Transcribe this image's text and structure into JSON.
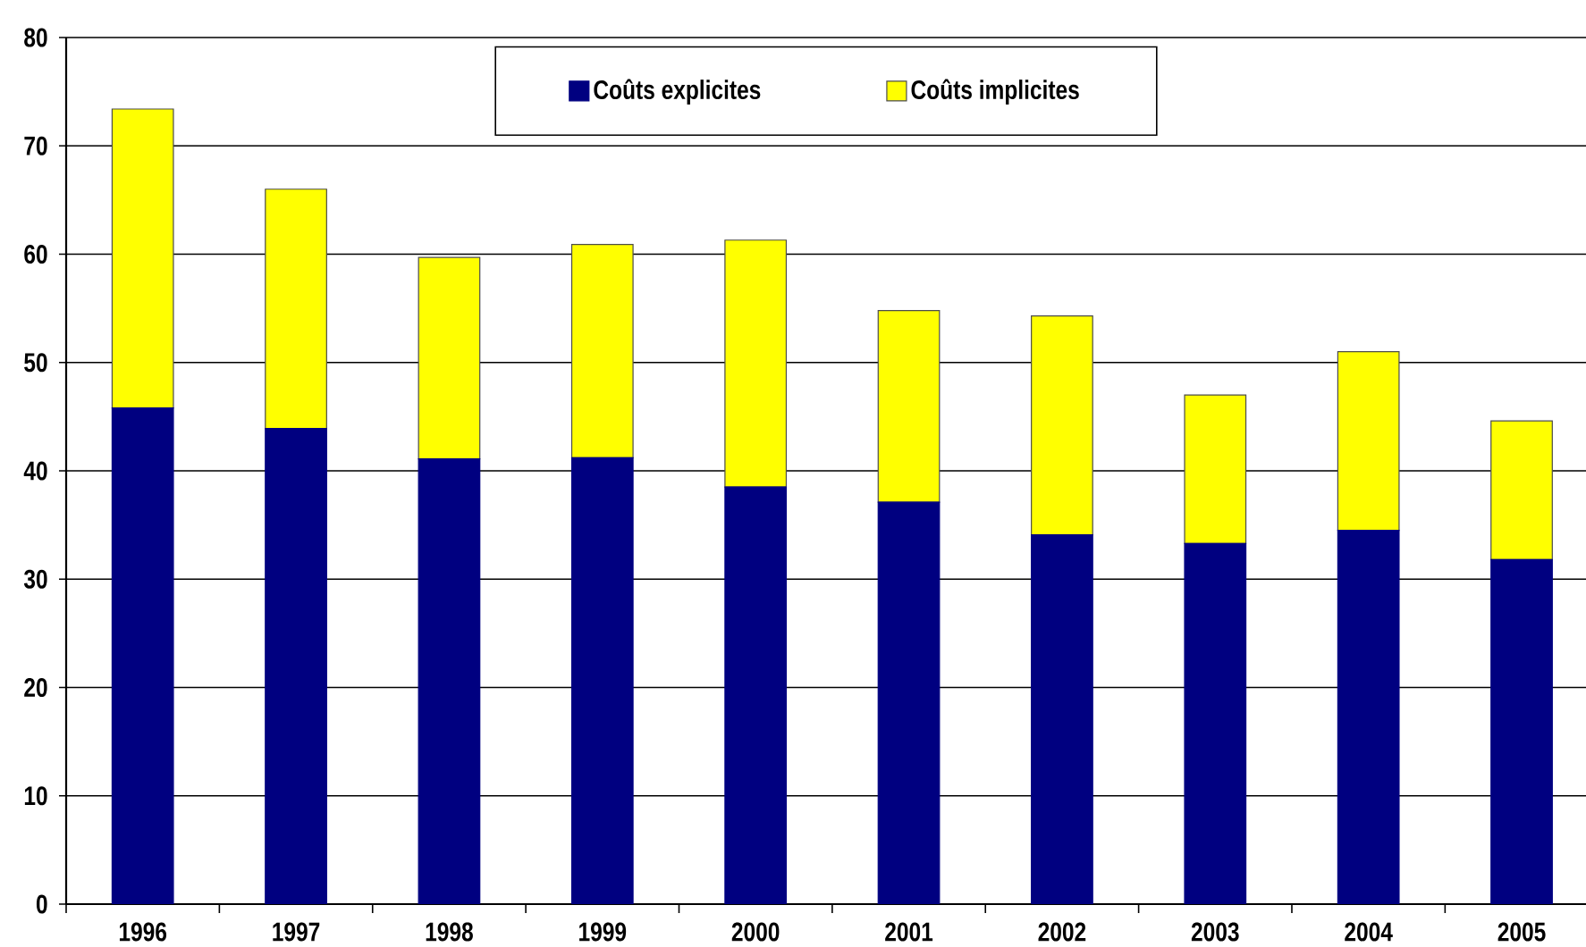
{
  "chart_data": {
    "type": "bar",
    "stacked": true,
    "categories": [
      "1996",
      "1997",
      "1998",
      "1999",
      "2000",
      "2001",
      "2002",
      "2003",
      "2004",
      "2005"
    ],
    "series": [
      {
        "name": "Coûts explicites",
        "color": "#000080",
        "values": [
          45.8,
          43.9,
          41.1,
          41.2,
          38.5,
          37.1,
          34.1,
          33.3,
          34.5,
          31.8
        ]
      },
      {
        "name": "Coûts implicites",
        "color": "#ffff00",
        "values": [
          27.6,
          22.1,
          18.6,
          19.7,
          22.8,
          17.7,
          20.2,
          13.7,
          16.5,
          12.8
        ]
      }
    ],
    "ylim": [
      0,
      80
    ],
    "yticks": [
      0,
      10,
      20,
      30,
      40,
      50,
      60,
      70,
      80
    ],
    "grid": "y",
    "legend": "top"
  }
}
